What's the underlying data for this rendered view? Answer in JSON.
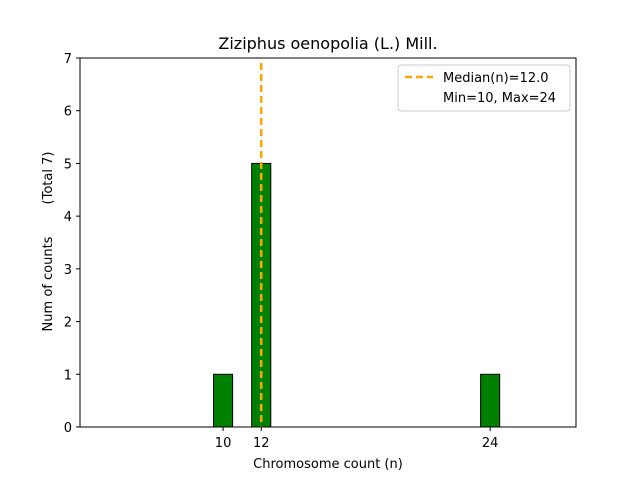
{
  "chart_data": {
    "type": "bar",
    "title": "Ziziphus oenopolia (L.) Mill.",
    "xlabel": "Chromosome count (n)",
    "ylabel": "Num of counts",
    "ylabel_note": "(Total 7)",
    "xlim": [
      2.5,
      28.5
    ],
    "ylim": [
      0,
      7
    ],
    "x_ticks": [
      10,
      12,
      24
    ],
    "y_ticks": [
      0,
      1,
      2,
      3,
      4,
      5,
      6,
      7
    ],
    "bar_width": 1,
    "x": [
      10,
      12,
      24
    ],
    "values": [
      1,
      5,
      1
    ],
    "bar_color": "#008000",
    "bar_edge_color": "#000000",
    "median": 12.0,
    "median_color": "#ffa500",
    "legend": {
      "placement": "top-right",
      "entries": [
        "Median(n)=12.0",
        "Min=10, Max=24"
      ]
    }
  }
}
